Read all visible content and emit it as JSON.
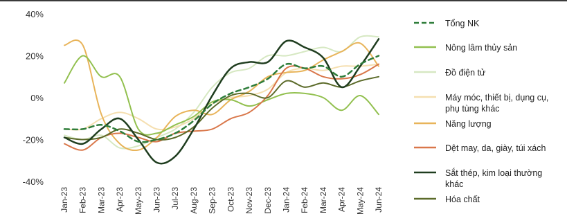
{
  "chart_data": {
    "type": "line",
    "categories": [
      "Jan-23",
      "Feb-23",
      "Mar-23",
      "Apr-23",
      "May-23",
      "Jun-23",
      "Jul-23",
      "Aug-23",
      "Sep-23",
      "Oct-23",
      "Nov-23",
      "Dec-23",
      "Jan-24",
      "Feb-24",
      "Mar-24",
      "Apr-24",
      "May-24",
      "Jun-24"
    ],
    "y_tick_labels": [
      "40%",
      "20%",
      "0%",
      "-20%",
      "-40%"
    ],
    "ylim": [
      -40,
      40
    ],
    "y_unit": "%",
    "grid": false,
    "legend_position": "right",
    "series": [
      {
        "name": "Tổng NK",
        "color": "#2e7d3a",
        "dash": true,
        "width": 2.5,
        "values": [
          -15,
          -15,
          -13,
          -16,
          -21,
          -20,
          -17,
          -11,
          -3,
          2,
          5,
          9,
          16,
          14,
          15,
          10,
          16,
          20
        ]
      },
      {
        "name": "Nông lâm thủy sản",
        "color": "#92c04f",
        "dash": false,
        "width": 2,
        "values": [
          7,
          20,
          10,
          10,
          -15,
          -17,
          -13,
          -9,
          -2,
          -1,
          -4,
          -1,
          2,
          2,
          0,
          -6,
          1,
          -8
        ]
      },
      {
        "name": "Đồ điện tử",
        "color": "#d6e8c2",
        "dash": false,
        "width": 2,
        "values": [
          -18,
          -20,
          -18,
          -24,
          -23,
          -19,
          -15,
          -7,
          5,
          12,
          14,
          20,
          20,
          22,
          24,
          22,
          29,
          29
        ]
      },
      {
        "name": "Máy móc, thiết bị, dụng cụ, phụ tùng khác",
        "color": "#f5dfb0",
        "dash": false,
        "width": 2,
        "values": [
          -15,
          -15,
          -10,
          -7,
          -10,
          -15,
          -14,
          -10,
          -3,
          0,
          1,
          4,
          12,
          14,
          13,
          15,
          15,
          16
        ]
      },
      {
        "name": "Năng lượng",
        "color": "#e8b45a",
        "dash": false,
        "width": 2,
        "values": [
          25,
          25,
          -8,
          -22,
          -25,
          -19,
          -9,
          -6,
          -8,
          -1,
          3,
          10,
          12,
          13,
          18,
          22,
          26,
          15
        ]
      },
      {
        "name": "Dệt may, da, giày, túi xách",
        "color": "#d9774a",
        "dash": false,
        "width": 2,
        "values": [
          -22,
          -25,
          -19,
          -17,
          -19,
          -21,
          -17,
          -16,
          -15,
          -10,
          -7,
          1,
          14,
          14,
          10,
          9,
          11,
          16
        ]
      },
      {
        "name": "Sắt thép, kim loại thường khác",
        "color": "#1f3d1f",
        "dash": false,
        "width": 2.5,
        "values": [
          -19,
          -22,
          -15,
          -10,
          -20,
          -31,
          -28,
          -15,
          1,
          14,
          17,
          17,
          27,
          24,
          19,
          5,
          15,
          28
        ]
      },
      {
        "name": "Hóa chất",
        "color": "#5c6b2a",
        "dash": false,
        "width": 2,
        "values": [
          -19,
          -20,
          -19,
          -15,
          -17,
          -20,
          -19,
          -14,
          -5,
          1,
          2,
          0,
          8,
          5,
          7,
          5,
          8,
          10
        ]
      }
    ]
  }
}
